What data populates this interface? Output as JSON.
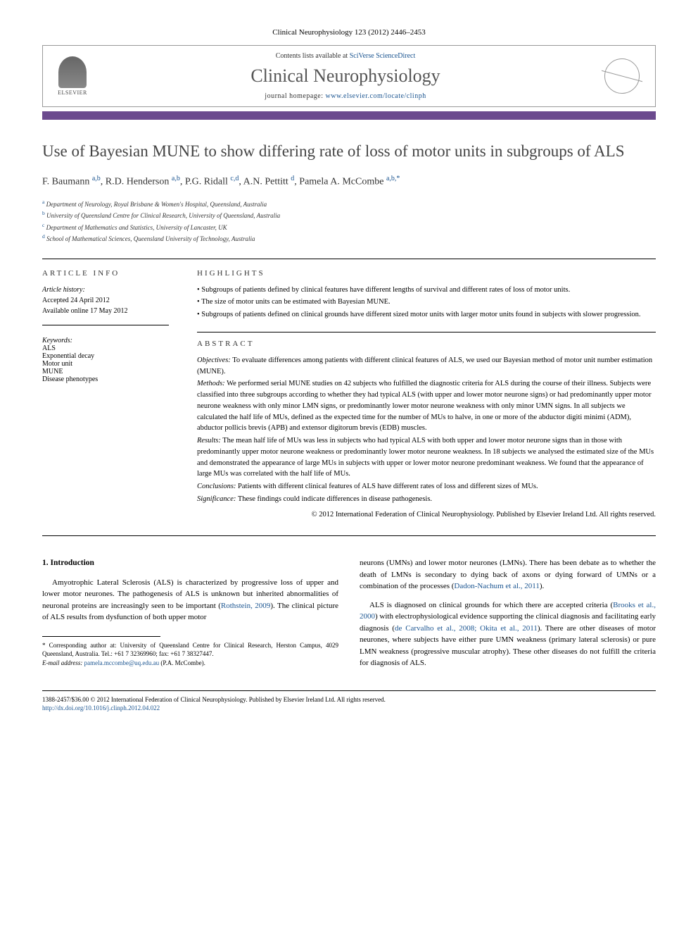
{
  "journal_header": "Clinical Neurophysiology 123 (2012) 2446–2453",
  "header_box": {
    "elsevier_label": "ELSEVIER",
    "contents_text": "Contents lists available at ",
    "contents_link": "SciVerse ScienceDirect",
    "journal_name": "Clinical Neurophysiology",
    "homepage_text": "journal homepage: ",
    "homepage_link": "www.elsevier.com/locate/clinph"
  },
  "colors": {
    "bar": "#6b4a8e",
    "link": "#1a5490",
    "title": "#444444"
  },
  "article": {
    "title": "Use of Bayesian MUNE to show differing rate of loss of motor units in subgroups of ALS",
    "authors_html": "F. Baumann <sup>a,b</sup>, R.D. Henderson <sup>a,b</sup>, P.G. Ridall <sup>c,d</sup>, A.N. Pettitt <sup>d</sup>, Pamela A. McCombe <sup>a,b,*</sup>",
    "affiliations": [
      {
        "sup": "a",
        "text": "Department of Neurology, Royal Brisbane & Women's Hospital, Queensland, Australia"
      },
      {
        "sup": "b",
        "text": "University of Queensland Centre for Clinical Research, University of Queensland, Australia"
      },
      {
        "sup": "c",
        "text": "Department of Mathematics and Statistics, University of Lancaster, UK"
      },
      {
        "sup": "d",
        "text": "School of Mathematical Sciences, Queensland University of Technology, Australia"
      }
    ]
  },
  "article_info": {
    "heading": "ARTICLE INFO",
    "history_label": "Article history:",
    "accepted": "Accepted 24 April 2012",
    "online": "Available online 17 May 2012",
    "keywords_label": "Keywords:",
    "keywords": [
      "ALS",
      "Exponential decay",
      "Motor unit",
      "MUNE",
      "Disease phenotypes"
    ]
  },
  "highlights": {
    "heading": "HIGHLIGHTS",
    "items": [
      "• Subgroups of patients defined by clinical features have different lengths of survival and different rates of loss of motor units.",
      "• The size of motor units can be estimated with Bayesian MUNE.",
      "• Subgroups of patients defined on clinical grounds have different sized motor units with larger motor units found in subjects with slower progression."
    ]
  },
  "abstract": {
    "heading": "ABSTRACT",
    "objectives_label": "Objectives:",
    "objectives": " To evaluate differences among patients with different clinical features of ALS, we used our Bayesian method of motor unit number estimation (MUNE).",
    "methods_label": "Methods:",
    "methods": " We performed serial MUNE studies on 42 subjects who fulfilled the diagnostic criteria for ALS during the course of their illness. Subjects were classified into three subgroups according to whether they had typical ALS (with upper and lower motor neurone signs) or had predominantly upper motor neurone weakness with only minor LMN signs, or predominantly lower motor neurone weakness with only minor UMN signs. In all subjects we calculated the half life of MUs, defined as the expected time for the number of MUs to halve, in one or more of the abductor digiti minimi (ADM), abductor pollicis brevis (APB) and extensor digitorum brevis (EDB) muscles.",
    "results_label": "Results:",
    "results": " The mean half life of MUs was less in subjects who had typical ALS with both upper and lower motor neurone signs than in those with predominantly upper motor neurone weakness or predominantly lower motor neurone weakness. In 18 subjects we analysed the estimated size of the MUs and demonstrated the appearance of large MUs in subjects with upper or lower motor neurone predominant weakness. We found that the appearance of large MUs was correlated with the half life of MUs.",
    "conclusions_label": "Conclusions:",
    "conclusions": " Patients with different clinical features of ALS have different rates of loss and different sizes of MUs.",
    "significance_label": "Significance:",
    "significance": " These findings could indicate differences in disease pathogenesis.",
    "copyright": "© 2012 International Federation of Clinical Neurophysiology. Published by Elsevier Ireland Ltd. All rights reserved."
  },
  "body": {
    "intro_heading": "1. Introduction",
    "col1_p1_pre": "Amyotrophic Lateral Sclerosis (ALS) is characterized by progressive loss of upper and lower motor neurones. The pathogenesis of ALS is unknown but inherited abnormalities of neuronal proteins are increasingly seen to be important (",
    "col1_p1_link": "Rothstein, 2009",
    "col1_p1_post": "). The clinical picture of ALS results from dysfunction of both upper motor",
    "col2_p1_pre": "neurons (UMNs) and lower motor neurones (LMNs). There has been debate as to whether the death of LMNs is secondary to dying back of axons or dying forward of UMNs or a combination of the processes (",
    "col2_p1_link": "Dadon-Nachum et al., 2011",
    "col2_p1_post": ").",
    "col2_p2_pre": "ALS is diagnosed on clinical grounds for which there are accepted criteria (",
    "col2_p2_link1": "Brooks et al., 2000",
    "col2_p2_mid1": ") with electrophysiological evidence supporting the clinical diagnosis and facilitating early diagnosis (",
    "col2_p2_link2": "de Carvalho et al., 2008; Okita et al., 2011",
    "col2_p2_post": "). There are other diseases of motor neurones, where subjects have either pure UMN weakness (primary lateral sclerosis) or pure LMN weakness (progressive muscular atrophy). These other diseases do not fulfill the criteria for diagnosis of ALS."
  },
  "footnote": {
    "corresponding_pre": "* Corresponding author at: University of Queensland Centre for Clinical Research, Herston Campus, 4029 Queensland, Australia. Tel.: +61 7 32369960; fax: +61 7 38327447.",
    "email_label": "E-mail address:",
    "email": "pamela.mccombe@uq.edu.au",
    "email_post": " (P.A. McCombe)."
  },
  "footer": {
    "line1": "1388-2457/$36.00 © 2012 International Federation of Clinical Neurophysiology. Published by Elsevier Ireland Ltd. All rights reserved.",
    "doi": "http://dx.doi.org/10.1016/j.clinph.2012.04.022"
  }
}
